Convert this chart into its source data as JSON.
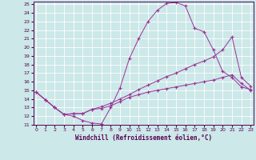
{
  "xlabel": "Windchill (Refroidissement éolien,°C)",
  "line_color": "#993399",
  "bg_color": "#cce8e8",
  "grid_color": "#aacccc",
  "xmin": 0,
  "xmax": 23,
  "ymin": 11,
  "ymax": 25,
  "line1_x": [
    0,
    1,
    2,
    3,
    4,
    5,
    6,
    7,
    8,
    9,
    10,
    11,
    12,
    13,
    14,
    15,
    16,
    17,
    18,
    19,
    20,
    21,
    22,
    23
  ],
  "line1_y": [
    14.8,
    13.9,
    13.0,
    12.2,
    12.0,
    11.5,
    11.2,
    11.1,
    13.0,
    15.3,
    18.7,
    21.0,
    23.0,
    24.3,
    25.1,
    25.2,
    24.8,
    22.2,
    21.8,
    19.7,
    17.2,
    16.5,
    15.4,
    15.1
  ],
  "line2_x": [
    0,
    1,
    2,
    3,
    4,
    5,
    6,
    7,
    8,
    9,
    10,
    11,
    12,
    13,
    14,
    15,
    16,
    17,
    18,
    19,
    20,
    21,
    22,
    23
  ],
  "line2_y": [
    14.8,
    13.9,
    13.0,
    12.2,
    12.3,
    12.3,
    12.8,
    13.1,
    13.5,
    14.0,
    14.5,
    15.1,
    15.6,
    16.1,
    16.6,
    17.0,
    17.5,
    18.0,
    18.4,
    18.9,
    19.7,
    21.2,
    16.5,
    15.5
  ],
  "line3_x": [
    0,
    1,
    2,
    3,
    4,
    5,
    6,
    7,
    8,
    9,
    10,
    11,
    12,
    13,
    14,
    15,
    16,
    17,
    18,
    19,
    20,
    21,
    22,
    23
  ],
  "line3_y": [
    14.8,
    13.9,
    13.0,
    12.2,
    12.3,
    12.3,
    12.8,
    12.9,
    13.2,
    13.7,
    14.2,
    14.5,
    14.8,
    15.0,
    15.2,
    15.4,
    15.6,
    15.8,
    16.0,
    16.2,
    16.5,
    16.8,
    15.8,
    15.0
  ]
}
